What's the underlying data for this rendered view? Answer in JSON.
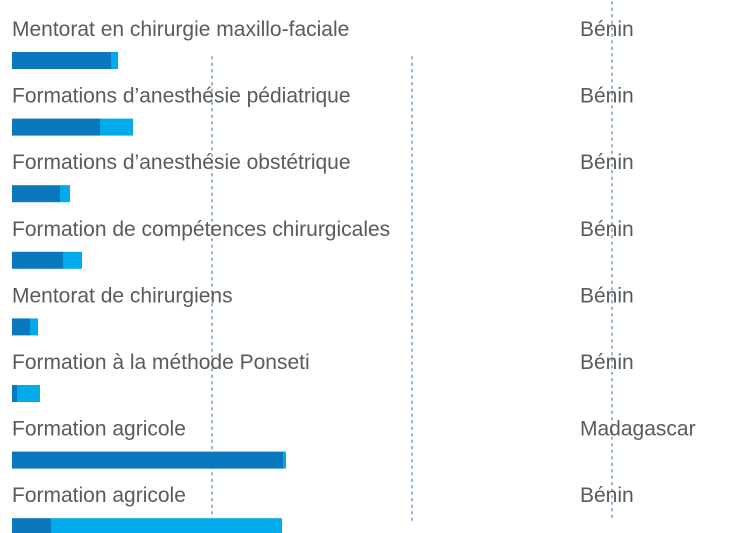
{
  "chart_data": {
    "type": "bar",
    "orientation": "horizontal",
    "stacked": true,
    "categories": [
      "Mentorat en chirurgie maxillo-faciale",
      "Formations d’anesthésie pédiatrique",
      "Formations d’anesthésie obstétrique",
      "Formation de compétences chirurgicales",
      "Mentorat de chirurgiens",
      "Formation à la méthode Ponseti",
      "Formation agricole",
      "Formation agricole"
    ],
    "countries": [
      "Bénin",
      "Bénin",
      "Bénin",
      "Bénin",
      "Bénin",
      "Bénin",
      "Madagascar",
      "Bénin"
    ],
    "series": [
      {
        "color": "#0b78bd",
        "values": [
          0.495,
          0.44,
          0.24,
          0.255,
          0.09,
          0.025,
          1.355,
          0.195
        ]
      },
      {
        "color": "#00aaeb",
        "values": [
          0.035,
          0.165,
          0.05,
          0.095,
          0.04,
          0.115,
          0.015,
          1.155
        ]
      }
    ],
    "xlim": [
      0,
      3.59
    ],
    "xticks": [
      1,
      2,
      3
    ],
    "grid": true
  }
}
